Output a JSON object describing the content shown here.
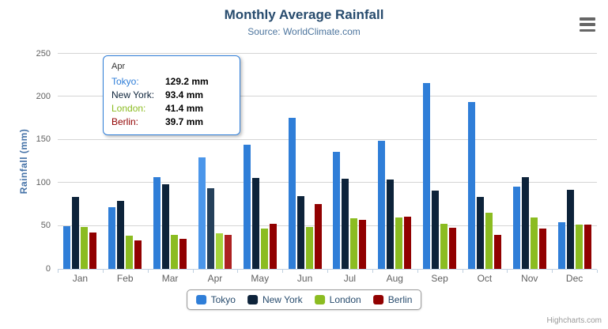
{
  "header": {
    "title": "Monthly Average Rainfall",
    "subtitle": "Source: WorldClimate.com"
  },
  "chart_data": {
    "type": "bar",
    "title": "Monthly Average Rainfall",
    "subtitle": "Source: WorldClimate.com",
    "xlabel": "",
    "ylabel": "Rainfall (mm)",
    "ylim": [
      0,
      250
    ],
    "yticks": [
      0,
      50,
      100,
      150,
      200,
      250
    ],
    "grid": true,
    "legend_position": "bottom",
    "categories": [
      "Jan",
      "Feb",
      "Mar",
      "Apr",
      "May",
      "Jun",
      "Jul",
      "Aug",
      "Sep",
      "Oct",
      "Nov",
      "Dec"
    ],
    "series": [
      {
        "name": "Tokyo",
        "color": "#2f7ed8",
        "hover_color": "#4b96ea",
        "values": [
          49.9,
          71.5,
          106.4,
          129.2,
          144.0,
          176.0,
          135.6,
          148.5,
          216.4,
          194.1,
          95.6,
          54.4
        ]
      },
      {
        "name": "New York",
        "color": "#0d233a",
        "hover_color": "#25405a",
        "values": [
          83.6,
          78.8,
          98.5,
          93.4,
          106.0,
          84.5,
          105.0,
          104.3,
          91.2,
          83.5,
          106.6,
          92.3
        ]
      },
      {
        "name": "London",
        "color": "#8bbc21",
        "hover_color": "#a5d53c",
        "values": [
          48.9,
          38.8,
          39.3,
          41.4,
          47.0,
          48.3,
          59.0,
          59.6,
          52.4,
          65.2,
          59.3,
          51.2
        ]
      },
      {
        "name": "Berlin",
        "color": "#910000",
        "hover_color": "#ad2121",
        "values": [
          42.4,
          33.2,
          34.5,
          39.7,
          52.6,
          75.5,
          57.4,
          60.4,
          47.6,
          39.1,
          46.8,
          51.1
        ]
      }
    ],
    "hovered_category": "Apr",
    "hovered_category_index": 3
  },
  "yaxis_title": "Rainfall (mm)",
  "tooltip": {
    "header": "Apr",
    "border_color": "#2f7ed8",
    "rows": [
      {
        "name": "Tokyo:",
        "value": "129.2 mm",
        "color": "#2f7ed8"
      },
      {
        "name": "New York:",
        "value": "93.4 mm",
        "color": "#0d233a"
      },
      {
        "name": "London:",
        "value": "41.4 mm",
        "color": "#8bbc21"
      },
      {
        "name": "Berlin:",
        "value": "39.7 mm",
        "color": "#910000"
      }
    ]
  },
  "legend": {
    "items": [
      {
        "label": "Tokyo",
        "color": "#2f7ed8"
      },
      {
        "label": "New York",
        "color": "#0d233a"
      },
      {
        "label": "London",
        "color": "#8bbc21"
      },
      {
        "label": "Berlin",
        "color": "#910000"
      }
    ]
  },
  "credits": {
    "label": "Highcharts.com"
  },
  "colors": {
    "title": "#274b6d",
    "subtitle": "#4d759e",
    "axis_line": "#c0d0e0",
    "grid_line": "#d4d4d4",
    "axis_label": "#606060",
    "yaxis_title": "#4572a7",
    "legend_text": "#274b6d",
    "legend_border": "#999999",
    "menu_icon": "#666666",
    "credits": "#9a9a9a"
  }
}
